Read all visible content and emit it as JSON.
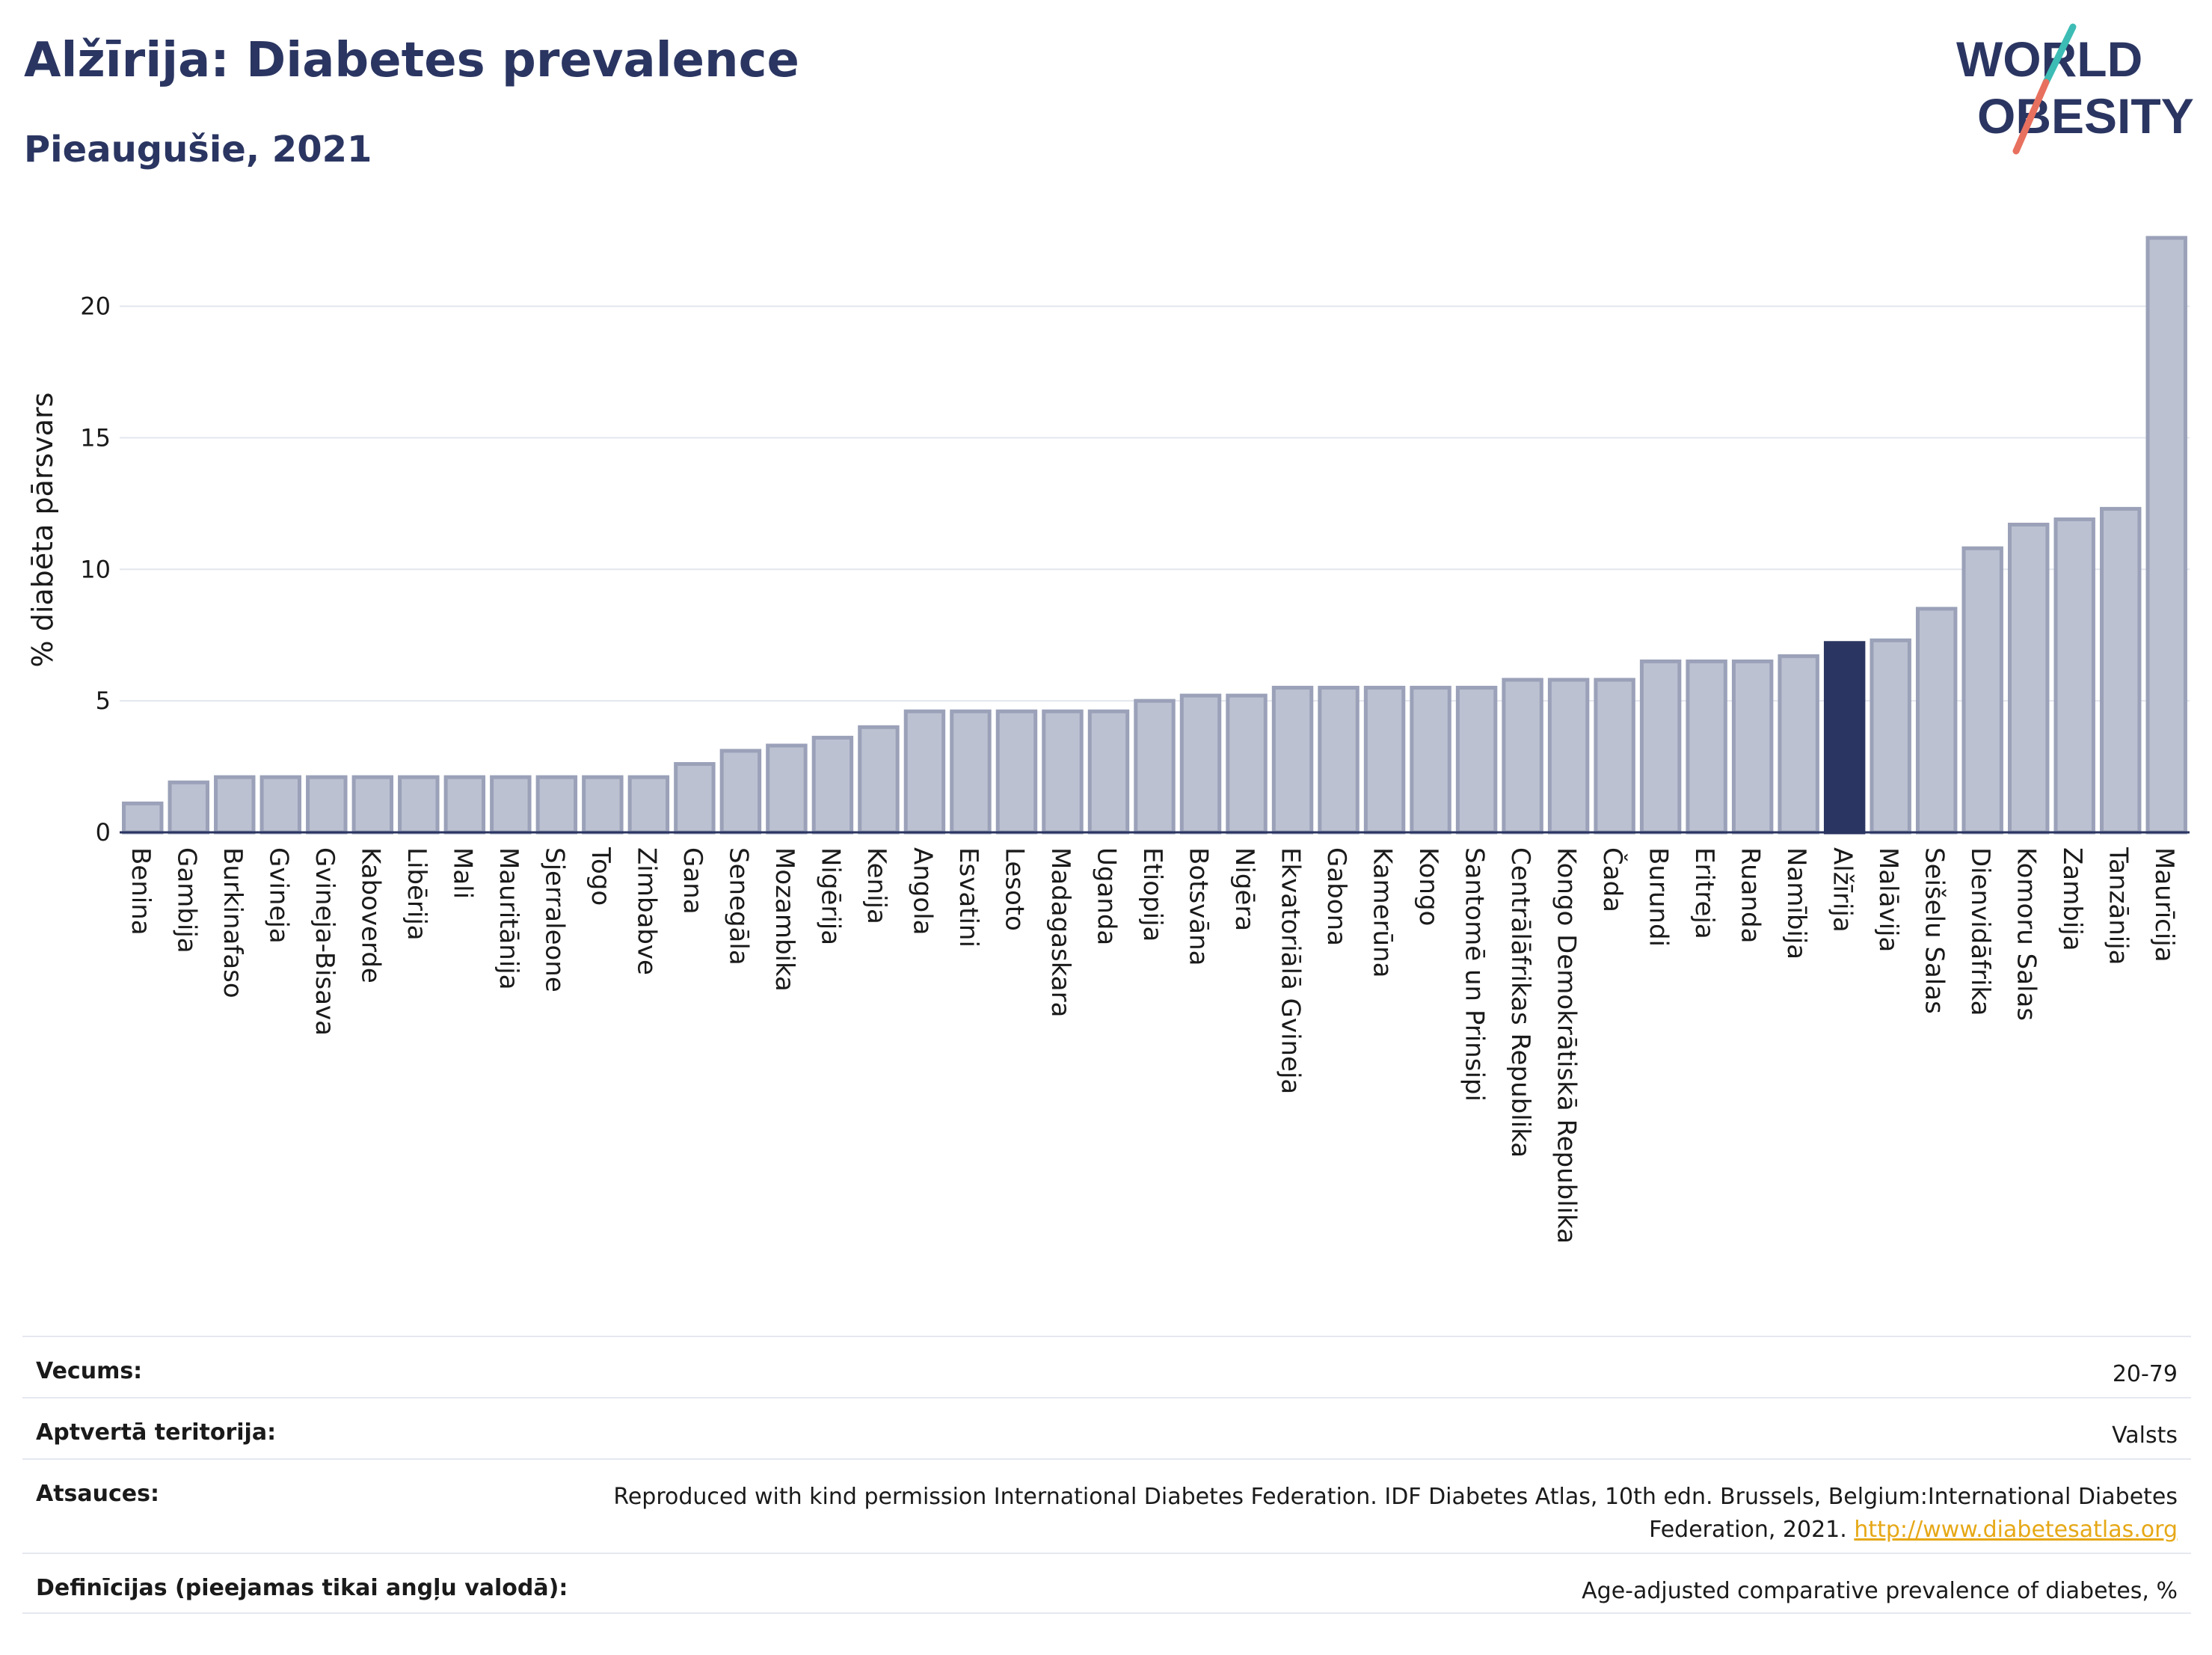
{
  "header": {
    "title": "Alžīrija: Diabetes prevalence",
    "subtitle": "Pieaugušie, 2021"
  },
  "logo": {
    "line1": "WORLD",
    "line2": "OBESITY"
  },
  "chart_data": {
    "type": "bar",
    "ylabel": "% diabēta pārsvars",
    "ylim": [
      0,
      23
    ],
    "yticks": [
      0,
      5,
      10,
      15,
      20
    ],
    "grid": true,
    "highlight": "Alžīrija",
    "colors": {
      "bar": "#bcc1d1",
      "bar_edge": "#9aa1b8",
      "highlight": "#2a3561"
    },
    "categories": [
      "Benina",
      "Gambija",
      "Burkinafaso",
      "Gvineja",
      "Gvineja-Bisava",
      "Kaboverde",
      "Libērija",
      "Mali",
      "Mauritānija",
      "Sjerraleone",
      "Togo",
      "Zimbabve",
      "Gana",
      "Senegāla",
      "Mozambika",
      "Nigērija",
      "Kenija",
      "Angola",
      "Esvatini",
      "Lesoto",
      "Madagaskara",
      "Uganda",
      "Etiopija",
      "Botsvāna",
      "Nigēra",
      "Ekvatoriālā Gvineja",
      "Gabona",
      "Kamerūna",
      "Kongo",
      "Santomē un Prinsipi",
      "Centrālāfrikas Republika",
      "Kongo Demokrātiskā Republika",
      "Čada",
      "Burundi",
      "Eritreja",
      "Ruanda",
      "Namībija",
      "Alžīrija",
      "Malāvija",
      "Seišelu Salas",
      "Dienvidāfrika",
      "Komoru Salas",
      "Zambija",
      "Tanzānija",
      "Maurīcija"
    ],
    "values": [
      1.1,
      1.9,
      2.1,
      2.1,
      2.1,
      2.1,
      2.1,
      2.1,
      2.1,
      2.1,
      2.1,
      2.1,
      2.6,
      3.1,
      3.3,
      3.6,
      4.0,
      4.6,
      4.6,
      4.6,
      4.6,
      4.6,
      5.0,
      5.2,
      5.2,
      5.5,
      5.5,
      5.5,
      5.5,
      5.5,
      5.8,
      5.8,
      5.8,
      6.5,
      6.5,
      6.5,
      6.7,
      7.2,
      7.3,
      8.5,
      10.8,
      11.7,
      11.9,
      12.3,
      22.6
    ]
  },
  "meta": [
    {
      "label": "Vecums:",
      "value": "20-79"
    },
    {
      "label": "Aptvertā teritorija:",
      "value": "Valsts"
    },
    {
      "label": "Atsauces:",
      "value": "Reproduced with kind permission International Diabetes Federation.  IDF Diabetes Atlas, 10th edn. Brussels, Belgium:International Diabetes Federation, 2021. ",
      "link": "http://www.diabetesatlas.org"
    },
    {
      "label": "Definīcijas (pieejamas tikai angļu valodā):",
      "value": "Age-adjusted comparative prevalence of diabetes, %"
    }
  ]
}
